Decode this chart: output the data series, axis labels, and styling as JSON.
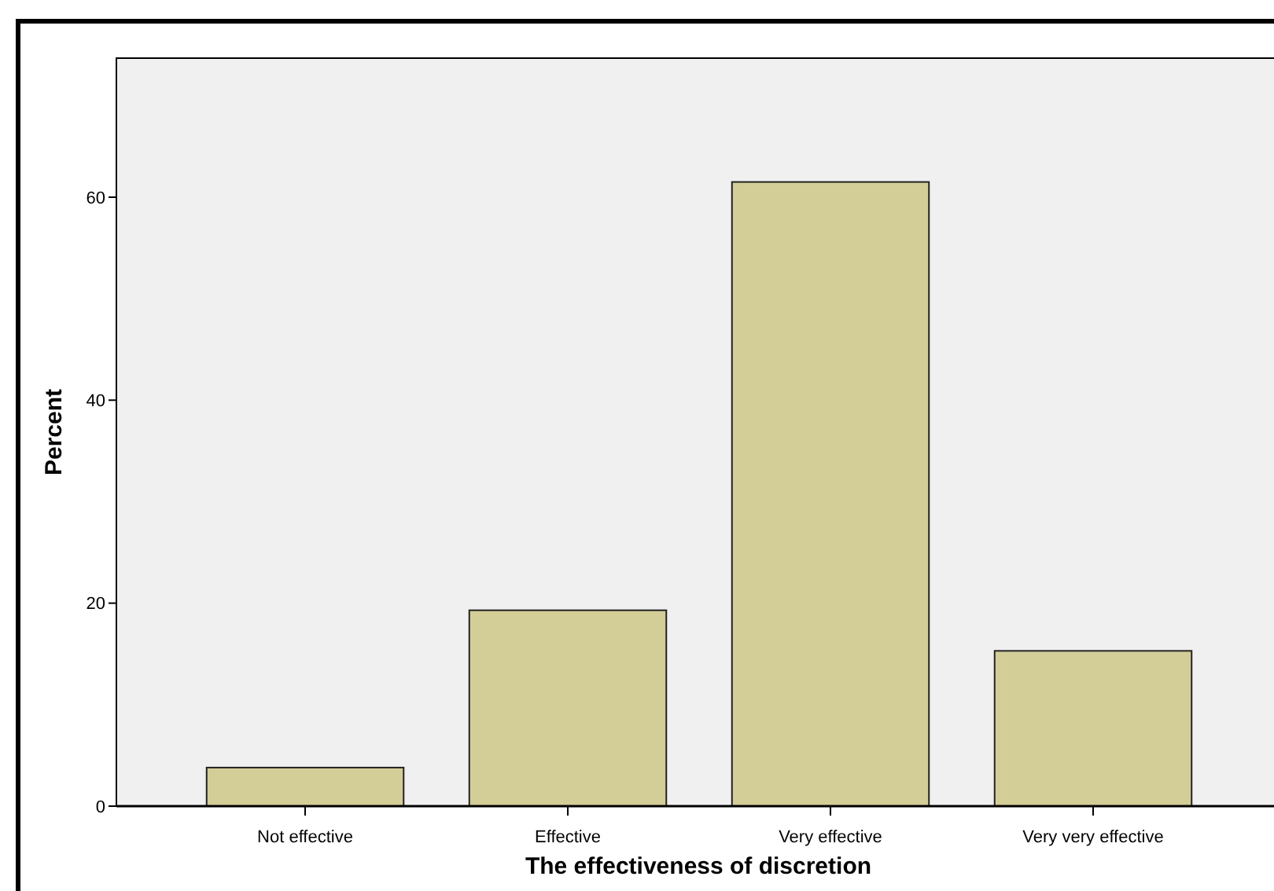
{
  "chart_data": {
    "type": "bar",
    "xlabel": "The effectiveness of discretion",
    "ylabel": "Percent",
    "categories": [
      "Not effective",
      "Effective",
      "Very effective",
      "Very very effective"
    ],
    "values": [
      3.8,
      19.3,
      61.5,
      15.3
    ],
    "color": "#d3cd97",
    "ylim": [
      0,
      73.7
    ],
    "yticks": [
      0,
      20,
      40,
      60
    ],
    "grid": false
  }
}
